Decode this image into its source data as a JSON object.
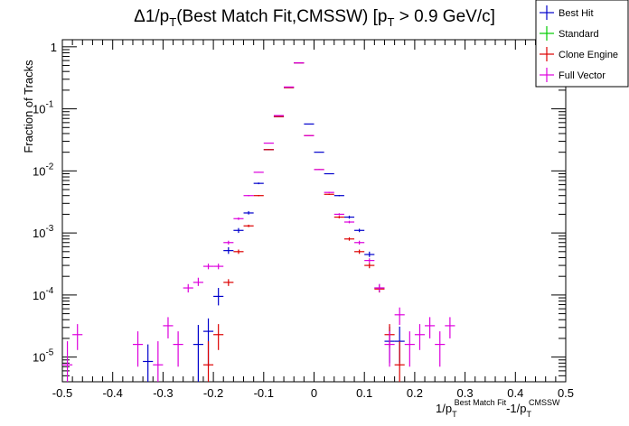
{
  "chart_data": {
    "type": "scatter",
    "title": {
      "delta": "Δ1/p",
      "sub1": "T",
      "mid": "(Best Match Fit,CMSSW) [p",
      "sub2": "T",
      "tail": " > 0.9 GeV/c]"
    },
    "ylabel": "Fraction of Tracks",
    "xlabel": {
      "a": "1/p",
      "a_sub": "T",
      "a_sup": "Best Match Fit",
      "b": "-1/p",
      "b_sub": "T",
      "b_sup": "CMSSW"
    },
    "xlim": [
      -0.5,
      0.5
    ],
    "ylim": [
      4e-06,
      1.3
    ],
    "yscale": "log",
    "x_ticks": [
      "-0.5",
      "-0.4",
      "-0.3",
      "-0.2",
      "-0.1",
      "0",
      "0.1",
      "0.2",
      "0.3",
      "0.4",
      "0.5"
    ],
    "y_ticks": [
      {
        "base": "10",
        "exp": "-5",
        "value": 1e-05
      },
      {
        "base": "10",
        "exp": "-4",
        "value": 0.0001
      },
      {
        "base": "10",
        "exp": "-3",
        "value": 0.001
      },
      {
        "base": "10",
        "exp": "-2",
        "value": 0.01
      },
      {
        "base": "10",
        "exp": "-1",
        "value": 0.1
      },
      {
        "base": "1",
        "exp": "",
        "value": 1
      }
    ],
    "bin_width": 0.02,
    "legend_position": "top-right",
    "series": [
      {
        "name": "Best Hit",
        "color": "#0000cc",
        "points": [
          [
            -0.33,
            8.5e-06,
            4e-06,
            1.6e-05
          ],
          [
            -0.23,
            1.6e-05,
            4e-06,
            3.3e-05
          ],
          [
            -0.21,
            2.6e-05,
            7e-06,
            4.2e-05
          ],
          [
            -0.19,
            9.5e-05,
            6.8e-05,
            0.00013
          ],
          [
            -0.17,
            0.00052,
            0.00046,
            0.00059
          ],
          [
            -0.15,
            0.0011,
            0.001,
            0.0012
          ],
          [
            -0.13,
            0.0021,
            0.00198,
            0.00225
          ],
          [
            -0.11,
            0.0063,
            0.0061,
            0.0065
          ],
          [
            -0.09,
            0.022,
            0.0218,
            0.0224
          ],
          [
            -0.07,
            0.075,
            0.0745,
            0.0755
          ],
          [
            -0.05,
            0.22,
            0.219,
            0.221
          ],
          [
            -0.03,
            0.55,
            0.549,
            0.551
          ],
          [
            -0.01,
            0.057,
            0.0568,
            0.0572
          ],
          [
            0.01,
            0.02,
            0.0198,
            0.0202
          ],
          [
            0.03,
            0.009,
            0.00885,
            0.00915
          ],
          [
            0.05,
            0.004,
            0.0039,
            0.0041
          ],
          [
            0.07,
            0.0018,
            0.0017,
            0.0019
          ],
          [
            0.09,
            0.0011,
            0.00103,
            0.00117
          ],
          [
            0.11,
            0.00045,
            0.00041,
            0.0005
          ],
          [
            0.13,
            0.00013,
            0.00011,
            0.00015
          ],
          [
            0.15,
            1.8e-05,
            8e-06,
            3.1e-05
          ],
          [
            0.17,
            1.8e-05,
            8e-06,
            3.1e-05
          ]
        ]
      },
      {
        "name": "Standard",
        "color": "#00cc00",
        "points": []
      },
      {
        "name": "Clone Engine",
        "color": "#dd0000",
        "points": [
          [
            -0.21,
            7.5e-06,
            4e-06,
            1.8e-05
          ],
          [
            -0.19,
            2.3e-05,
            1.3e-05,
            3.4e-05
          ],
          [
            -0.17,
            0.00016,
            0.00014,
            0.00018
          ],
          [
            -0.15,
            0.0005,
            0.00046,
            0.00054
          ],
          [
            -0.13,
            0.0013,
            0.00124,
            0.00136
          ],
          [
            -0.11,
            0.004,
            0.0039,
            0.0041
          ],
          [
            -0.09,
            0.022,
            0.0218,
            0.0222
          ],
          [
            -0.07,
            0.075,
            0.0745,
            0.0755
          ],
          [
            -0.05,
            0.22,
            0.219,
            0.221
          ],
          [
            -0.03,
            0.55,
            0.549,
            0.551
          ],
          [
            -0.01,
            0.037,
            0.0368,
            0.0372
          ],
          [
            0.01,
            0.0105,
            0.0103,
            0.0107
          ],
          [
            0.03,
            0.0042,
            0.0041,
            0.0043
          ],
          [
            0.05,
            0.0018,
            0.00172,
            0.00188
          ],
          [
            0.07,
            0.0008,
            0.00075,
            0.00085
          ],
          [
            0.09,
            0.0005,
            0.00046,
            0.00054
          ],
          [
            0.11,
            0.0003,
            0.00027,
            0.00033
          ],
          [
            0.13,
            0.000125,
            0.00011,
            0.000145
          ],
          [
            0.15,
            2.3e-05,
            1.4e-05,
            3.4e-05
          ],
          [
            0.17,
            7.5e-06,
            4e-06,
            1.8e-05
          ]
        ]
      },
      {
        "name": "Full Vector",
        "color": "#dd00dd",
        "points": [
          [
            -0.49,
            7.5e-06,
            4e-06,
            1.8e-05
          ],
          [
            -0.47,
            2.3e-05,
            1.3e-05,
            3.4e-05
          ],
          [
            -0.35,
            1.6e-05,
            7e-06,
            2.6e-05
          ],
          [
            -0.31,
            7.5e-06,
            4e-06,
            1.8e-05
          ],
          [
            -0.29,
            3.2e-05,
            2e-05,
            4.4e-05
          ],
          [
            -0.27,
            1.6e-05,
            7e-06,
            2.6e-05
          ],
          [
            -0.25,
            0.00013,
            0.00011,
            0.00015
          ],
          [
            -0.23,
            0.00016,
            0.00014,
            0.00019
          ],
          [
            -0.21,
            0.00029,
            0.00026,
            0.00032
          ],
          [
            -0.19,
            0.00029,
            0.00026,
            0.00032
          ],
          [
            -0.17,
            0.0007,
            0.00065,
            0.00075
          ],
          [
            -0.15,
            0.0017,
            0.00162,
            0.00178
          ],
          [
            -0.13,
            0.004,
            0.0039,
            0.0041
          ],
          [
            -0.11,
            0.0095,
            0.00935,
            0.00965
          ],
          [
            -0.09,
            0.028,
            0.0278,
            0.0282
          ],
          [
            -0.07,
            0.078,
            0.0775,
            0.0785
          ],
          [
            -0.05,
            0.225,
            0.224,
            0.226
          ],
          [
            -0.03,
            0.55,
            0.549,
            0.551
          ],
          [
            -0.01,
            0.037,
            0.0368,
            0.0372
          ],
          [
            0.01,
            0.0105,
            0.0103,
            0.0107
          ],
          [
            0.03,
            0.0045,
            0.0044,
            0.0046
          ],
          [
            0.05,
            0.002,
            0.00192,
            0.00208
          ],
          [
            0.07,
            0.0015,
            0.00143,
            0.00157
          ],
          [
            0.09,
            0.0007,
            0.00065,
            0.00075
          ],
          [
            0.11,
            0.00036,
            0.00033,
            0.00039
          ],
          [
            0.13,
            0.00013,
            0.000112,
            0.00015
          ],
          [
            0.15,
            1.6e-05,
            7e-06,
            2.6e-05
          ],
          [
            0.17,
            4.8e-05,
            3.3e-05,
            6.3e-05
          ],
          [
            0.19,
            1.6e-05,
            7e-06,
            2.6e-05
          ],
          [
            0.21,
            2.3e-05,
            1.3e-05,
            3.4e-05
          ],
          [
            0.23,
            3.2e-05,
            2e-05,
            4.4e-05
          ],
          [
            0.25,
            1.6e-05,
            7e-06,
            2.6e-05
          ],
          [
            0.27,
            3.2e-05,
            2e-05,
            4.4e-05
          ]
        ]
      }
    ]
  }
}
